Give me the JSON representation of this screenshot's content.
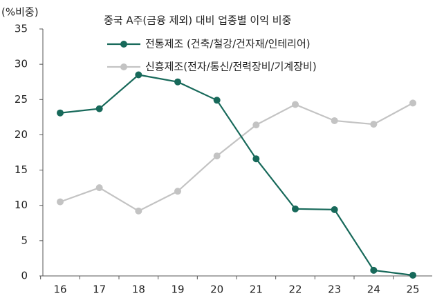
{
  "chart_data": {
    "type": "line",
    "title": "중국 A주(금융 제외) 대비 업종별 이익 비중",
    "y_label": "(%비중)",
    "categories": [
      "16",
      "17",
      "18",
      "19",
      "20",
      "21",
      "22",
      "23",
      "24",
      "25"
    ],
    "series": [
      {
        "name": "전통제조 (건축/철강/건자재/인테리어)",
        "color": "#17695a",
        "values": [
          23.1,
          23.7,
          28.5,
          27.5,
          24.9,
          16.6,
          9.5,
          9.4,
          0.8,
          0.1
        ]
      },
      {
        "name": "신흥제조(전자/통신/전력장비/기계장비)",
        "color": "#c3c3c3",
        "values": [
          10.5,
          12.5,
          9.2,
          12.0,
          17.0,
          21.4,
          24.3,
          22.0,
          21.5,
          24.5
        ]
      }
    ],
    "ylim": [
      0,
      35
    ],
    "yticks": [
      0,
      5,
      10,
      15,
      20,
      25,
      30,
      35
    ],
    "grid": false
  }
}
